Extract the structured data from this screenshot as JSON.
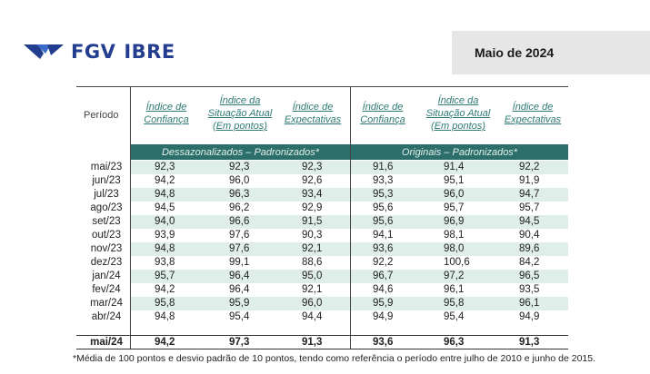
{
  "header": {
    "logo_text_1": "FGV",
    "logo_text_2": "IBRE",
    "date": "Maio de 2024"
  },
  "table": {
    "col_periodo": "Período",
    "col_headers": [
      {
        "l1": "Índice de",
        "l2": "Confiança",
        "l3": ""
      },
      {
        "l1": "Índice da",
        "l2": "Situação Atual",
        "l3": "(Em pontos)"
      },
      {
        "l1": "Índice de",
        "l2": "Expectativas",
        "l3": ""
      },
      {
        "l1": "Índice de",
        "l2": "Confiança",
        "l3": ""
      },
      {
        "l1": "Índice da",
        "l2": "Situação Atual",
        "l3": "(Em pontos)"
      },
      {
        "l1": "Índice de",
        "l2": "Expectativas",
        "l3": ""
      }
    ],
    "band_left": "Dessazonalizados – Padronizados*",
    "band_right": "Originais – Padronizados*",
    "rows": [
      {
        "period": "mai/23",
        "v": [
          "92,3",
          "92,3",
          "92,3",
          "91,6",
          "91,4",
          "92,2"
        ]
      },
      {
        "period": "jun/23",
        "v": [
          "94,2",
          "96,0",
          "92,6",
          "93,3",
          "95,1",
          "91,9"
        ]
      },
      {
        "period": "jul/23",
        "v": [
          "94,8",
          "96,3",
          "93,4",
          "95,3",
          "96,0",
          "94,7"
        ]
      },
      {
        "period": "ago/23",
        "v": [
          "94,5",
          "96,2",
          "92,9",
          "95,6",
          "95,7",
          "95,7"
        ]
      },
      {
        "period": "set/23",
        "v": [
          "94,0",
          "96,6",
          "91,5",
          "95,6",
          "96,9",
          "94,5"
        ]
      },
      {
        "period": "out/23",
        "v": [
          "93,9",
          "97,6",
          "90,3",
          "94,1",
          "98,1",
          "90,4"
        ]
      },
      {
        "period": "nov/23",
        "v": [
          "94,8",
          "97,6",
          "92,1",
          "93,6",
          "98,0",
          "89,6"
        ]
      },
      {
        "period": "dez/23",
        "v": [
          "93,8",
          "99,1",
          "88,6",
          "92,2",
          "100,6",
          "84,2"
        ]
      },
      {
        "period": "jan/24",
        "v": [
          "95,7",
          "96,4",
          "95,0",
          "96,7",
          "97,2",
          "96,5"
        ]
      },
      {
        "period": "fev/24",
        "v": [
          "94,2",
          "96,4",
          "92,1",
          "94,6",
          "96,1",
          "93,5"
        ]
      },
      {
        "period": "mar/24",
        "v": [
          "95,8",
          "95,9",
          "96,0",
          "95,9",
          "95,8",
          "96,1"
        ]
      },
      {
        "period": "abr/24",
        "v": [
          "94,8",
          "95,4",
          "94,4",
          "94,9",
          "95,4",
          "94,9"
        ]
      },
      {
        "period": "mai/24",
        "v": [
          "94,2",
          "97,3",
          "91,3",
          "93,6",
          "96,3",
          "91,3"
        ]
      }
    ]
  },
  "footnote": "*Média de 100 pontos e desvio padrão de 10 pontos, tendo como referência o período entre julho de 2010 e junho de 2015."
}
